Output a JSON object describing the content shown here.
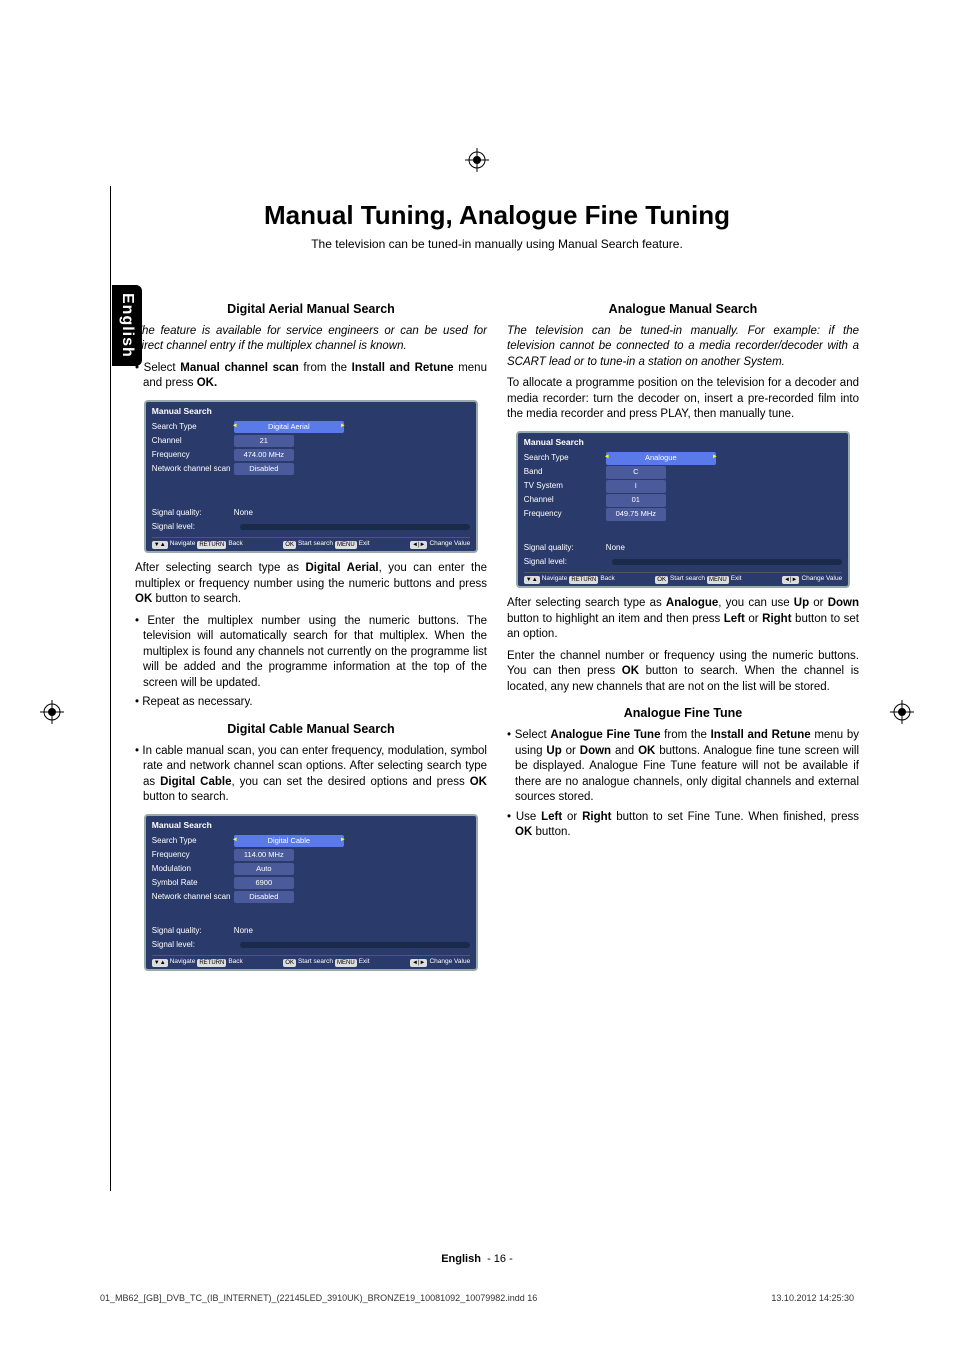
{
  "meta": {
    "language_tab": "English",
    "footer_lang": "English",
    "footer_page": "- 16 -",
    "imprint_file": "01_MB62_[GB]_DVB_TC_(IB_INTERNET)_(22145LED_3910UK)_BRONZE19_10081092_10079982.indd   16",
    "imprint_date": "13.10.2012   14:25:30"
  },
  "title": "Manual Tuning, Analogue Fine Tuning",
  "subtitle": "The television can be tuned-in manually using Manual Search feature.",
  "left": {
    "h1": "Digital Aerial Manual Search",
    "intro": "The feature is available for service engineers or can be used for direct channel entry if the multiplex channel is known.",
    "bullet1_pre": "Select ",
    "bullet1_b1": "Manual channel scan",
    "bullet1_mid": " from the ",
    "bullet1_b2": "Install and Retune",
    "bullet1_post": " menu and press ",
    "bullet1_b3": "OK.",
    "osd1": {
      "title": "Manual Search",
      "rows": [
        {
          "label": "Search Type",
          "value": "Digital Aerial",
          "sel": true
        },
        {
          "label": "Channel",
          "value": "21"
        },
        {
          "label": "Frequency",
          "value": "474.00 MHz"
        },
        {
          "label": "Network channel scan",
          "value": "Disabled"
        }
      ],
      "quality_label": "Signal quality:",
      "quality_value": "None",
      "level_label": "Signal level:",
      "foot_nav": "Navigate",
      "foot_back": "Back",
      "foot_ok": "Start search",
      "foot_menu": "Exit",
      "foot_change": "Change Value"
    },
    "after1_pre": "After selecting search type as ",
    "after1_b": "Digital Aerial",
    "after1_post": ", you can enter the multiplex or frequency number using the numeric buttons and press ",
    "after1_b2": "OK",
    "after1_end": " button to search.",
    "bullet2": "Enter the multiplex number using the numeric buttons. The television will automatically search for that multiplex. When the multiplex is found any channels not currently on the programme list will be added and the programme information at the top of the screen will be updated.",
    "bullet3": "Repeat as necessary.",
    "h2": "Digital Cable Manual Search",
    "bullet4_pre": "In cable manual scan, you can enter frequency, modulation, symbol rate and network channel scan options. After selecting search type as ",
    "bullet4_b": "Digital Cable",
    "bullet4_mid": ", you can set the desired options and press ",
    "bullet4_b2": "OK",
    "bullet4_post": " button to search.",
    "osd2": {
      "title": "Manual Search",
      "rows": [
        {
          "label": "Search Type",
          "value": "Digital Cable",
          "sel": true
        },
        {
          "label": "Frequency",
          "value": "114.00 MHz"
        },
        {
          "label": "Modulation",
          "value": "Auto"
        },
        {
          "label": "Symbol Rate",
          "value": "6900"
        },
        {
          "label": "Network channel scan",
          "value": "Disabled"
        }
      ],
      "quality_label": "Signal quality:",
      "quality_value": "None",
      "level_label": "Signal level:",
      "foot_nav": "Navigate",
      "foot_back": "Back",
      "foot_ok": "Start search",
      "foot_menu": "Exit",
      "foot_change": "Change Value"
    }
  },
  "right": {
    "h1": "Analogue Manual Search",
    "intro": "The television can be tuned-in manually. For example: if the television cannot be connected to a media recorder/decoder with a SCART lead or to tune-in a station on another System.",
    "p2": "To allocate a programme position on the television for a decoder and media recorder: turn the decoder on, insert a pre-recorded film into the media recorder and press PLAY, then manually tune.",
    "osd": {
      "title": "Manual Search",
      "rows": [
        {
          "label": "Search Type",
          "value": "Analogue",
          "sel": true
        },
        {
          "label": "Band",
          "value": "C"
        },
        {
          "label": "TV System",
          "value": "I"
        },
        {
          "label": "Channel",
          "value": "01"
        },
        {
          "label": "Frequency",
          "value": "049.75 MHz"
        }
      ],
      "quality_label": "Signal quality:",
      "quality_value": "None",
      "level_label": "Signal level:",
      "foot_nav": "Navigate",
      "foot_back": "Back",
      "foot_ok": "Start search",
      "foot_menu": "Exit",
      "foot_change": "Change Value"
    },
    "after_pre": "After selecting search type as ",
    "after_b1": "Analogue",
    "after_mid1": ", you can use ",
    "after_b2": "Up",
    "after_mid2": " or ",
    "after_b3": "Down",
    "after_mid3": " button to highlight an item and then press ",
    "after_b4": "Left",
    "after_mid4": " or ",
    "after_b5": "Right",
    "after_post": " button to set an option.",
    "p3_pre": "Enter the channel number or frequency using the numeric buttons. You can then press ",
    "p3_b": "OK",
    "p3_post": " button to search. When the channel is located, any new channels that are not on the list will be stored.",
    "h2": "Analogue Fine Tune",
    "ft1_pre": "Select ",
    "ft1_b1": "Analogue Fine Tune",
    "ft1_mid1": " from the ",
    "ft1_b2": "Install and Retune",
    "ft1_mid2": " menu by using ",
    "ft1_b3": "Up",
    "ft1_mid3": " or ",
    "ft1_b4": "Down",
    "ft1_mid4": " and ",
    "ft1_b5": "OK",
    "ft1_post": " buttons. Analogue fine tune screen will be displayed. Analogue Fine Tune feature will not be available if there are no analogue channels, only digital channels and external sources stored.",
    "ft2_pre": "Use ",
    "ft2_b1": "Left",
    "ft2_mid1": " or ",
    "ft2_b2": "Right",
    "ft2_mid2": " button to set Fine Tune. When finished, press ",
    "ft2_b3": "OK",
    "ft2_post": " button."
  }
}
